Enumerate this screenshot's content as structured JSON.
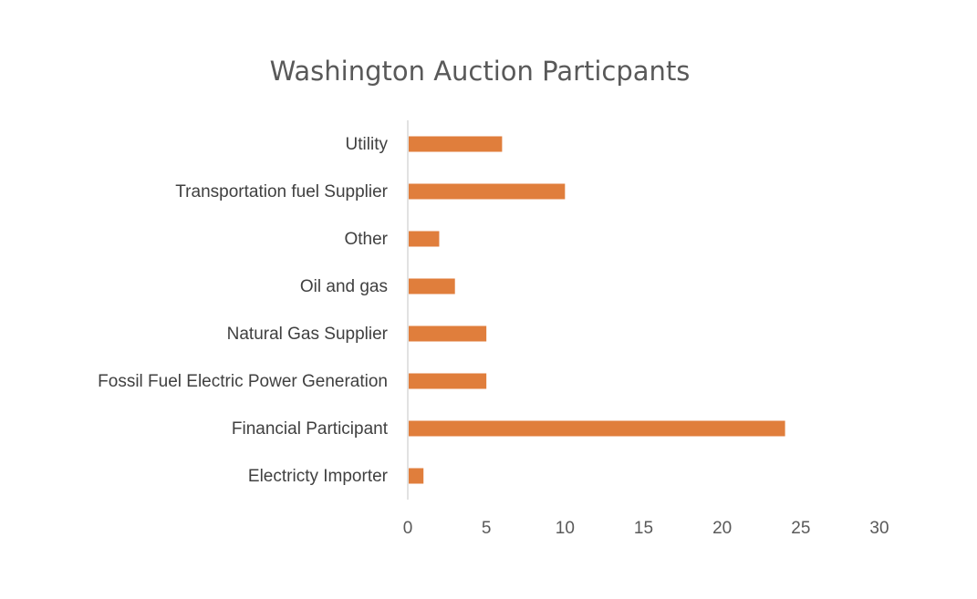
{
  "chart_data": {
    "type": "bar",
    "orientation": "horizontal",
    "title": "Washington Auction Particpants",
    "xlabel": "",
    "ylabel": "",
    "categories": [
      "Utility",
      "Transportation fuel Supplier",
      "Other",
      "Oil and gas",
      "Natural Gas Supplier",
      "Fossil Fuel Electric Power Generation",
      "Financial Participant",
      "Electricty Importer"
    ],
    "values": [
      6,
      10,
      2,
      3,
      5,
      5,
      24,
      1
    ],
    "xlim": [
      0,
      30
    ],
    "xticks": [
      0,
      5,
      10,
      15,
      20,
      25,
      30
    ],
    "grid": false,
    "legend": "none",
    "bar_color": "#E07E3C"
  }
}
